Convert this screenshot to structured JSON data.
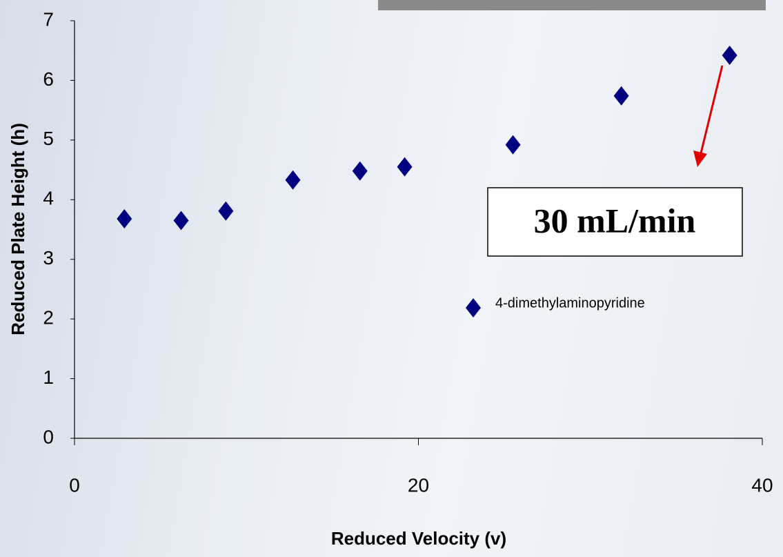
{
  "chart_data": {
    "type": "scatter",
    "x_label": "Reduced Velocity (v)",
    "y_label": "Reduced Plate Height (h)",
    "series": [
      {
        "name": "4-dimethylaminopyridine",
        "color": "#000080",
        "x": [
          2.9,
          6.2,
          8.8,
          12.7,
          16.6,
          19.2,
          25.5,
          31.8,
          38.1
        ],
        "values": [
          3.68,
          3.65,
          3.81,
          4.33,
          4.48,
          4.55,
          4.92,
          5.74,
          6.42
        ]
      }
    ],
    "xlim": [
      0,
      40
    ],
    "xticks": [
      0,
      20,
      40
    ],
    "ylim": [
      0,
      7
    ],
    "yticks": [
      0,
      1,
      2,
      3,
      4,
      5,
      6,
      7
    ],
    "legend": "right",
    "annotation": {
      "text": "30 mL/min",
      "color": "#e00000"
    }
  }
}
